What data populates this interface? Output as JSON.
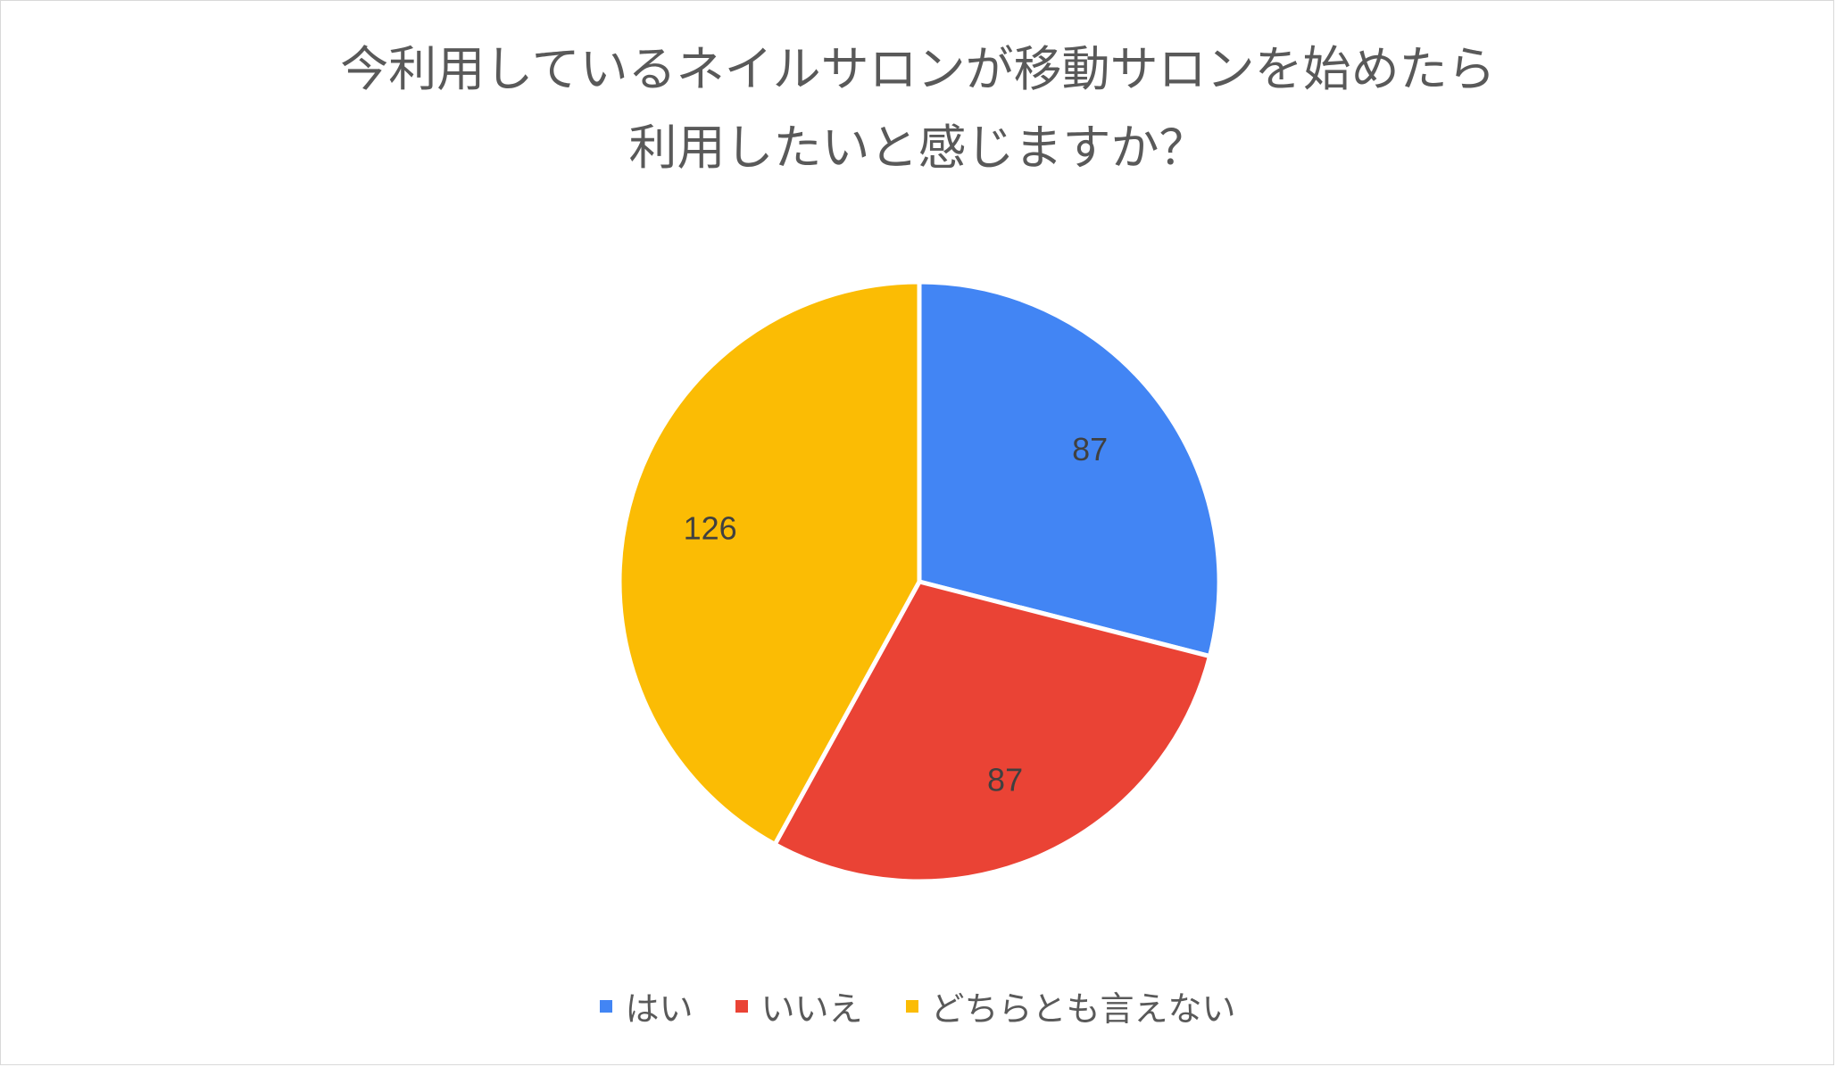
{
  "chart_data": {
    "type": "pie",
    "title": "今利用しているネイルサロンが移動サロンを始めたら利用したいと感じますか？",
    "title_lines": [
      "今利用しているネイルサロンが移動サロンを始めたら",
      "利用したいと感じますか？"
    ],
    "categories": [
      "はい",
      "いいえ",
      "どちらとも言えない"
    ],
    "values": [
      87,
      87,
      126
    ],
    "colors": [
      "#4285f4",
      "#ea4335",
      "#fbbc04"
    ],
    "data_labels": [
      "87",
      "87",
      "126"
    ],
    "legend_position": "bottom",
    "start_angle": "top",
    "direction": "clockwise"
  }
}
